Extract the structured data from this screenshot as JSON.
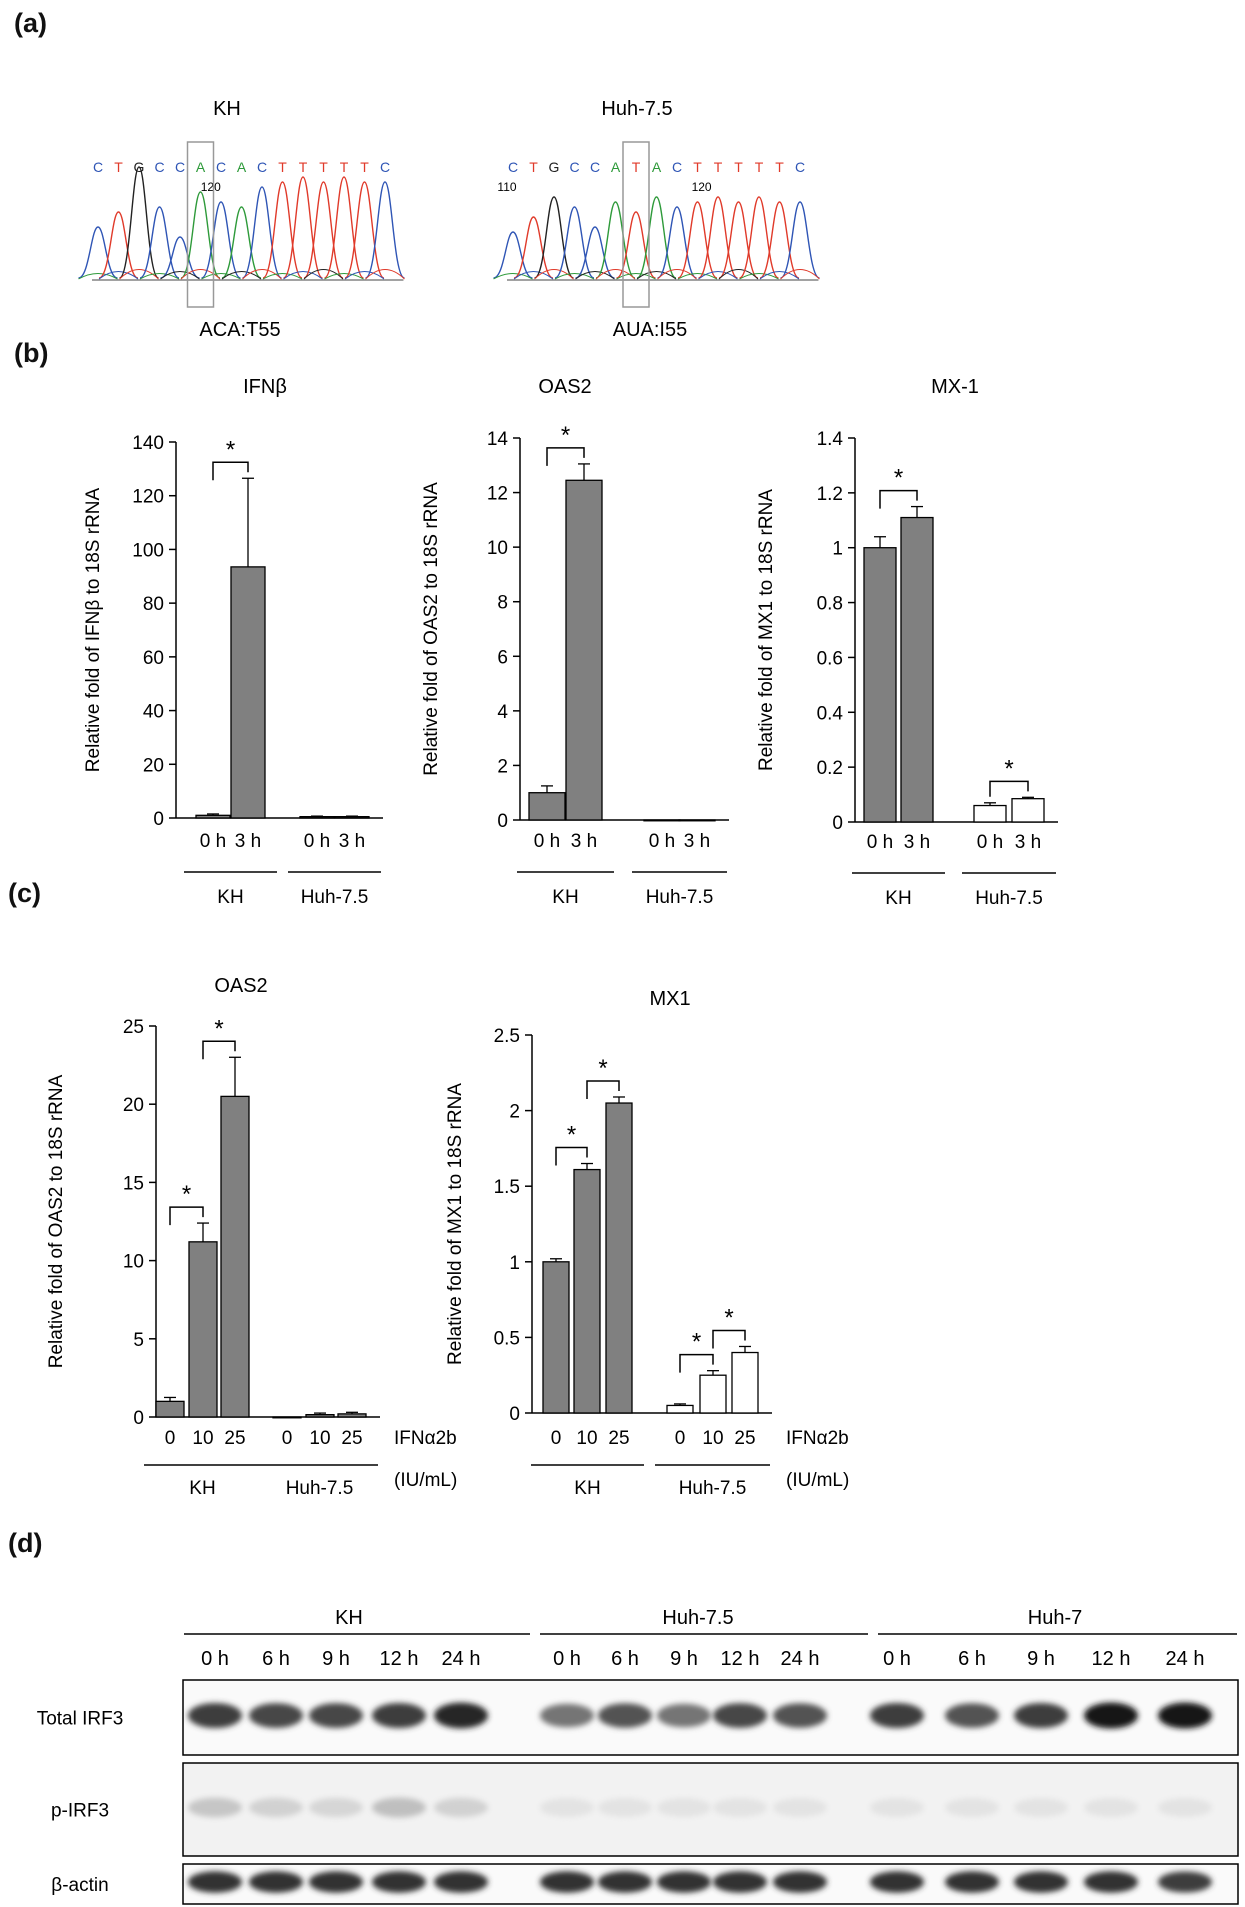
{
  "panel_labels": {
    "a": "(a)",
    "b": "(b)",
    "c": "(c)",
    "d": "(d)"
  },
  "panel_a": {
    "kh": {
      "title": "KH",
      "sequence": [
        "C",
        "T",
        "G",
        "C",
        "C",
        "A",
        "C",
        "A",
        "C",
        "T",
        "T",
        "T",
        "T",
        "T",
        "C"
      ],
      "position_label": "120",
      "codon_label": "ACA:T55"
    },
    "huh": {
      "title": "Huh-7.5",
      "sequence": [
        "C",
        "T",
        "G",
        "C",
        "C",
        "A",
        "T",
        "A",
        "C",
        "T",
        "T",
        "T",
        "T",
        "T",
        "C"
      ],
      "position_label_left": "110",
      "position_label": "120",
      "codon_label": "AUA:I55"
    },
    "base_colors": {
      "A": "#2e9a3a",
      "C": "#2f55b5",
      "G": "#222222",
      "T": "#e03a2a"
    }
  },
  "chart_data": [
    {
      "id": "b1",
      "type": "bar",
      "title": "IFNβ",
      "ylabel": "Relative fold of IFNβ to 18S rRNA",
      "ylim": [
        0,
        140
      ],
      "yticks": [
        0,
        20,
        40,
        60,
        80,
        100,
        120,
        140
      ],
      "groups": [
        {
          "name": "KH",
          "categories": [
            "0 h",
            "3 h"
          ]
        },
        {
          "name": "Huh-7.5",
          "categories": [
            "0 h",
            "3 h"
          ]
        }
      ],
      "series": [
        {
          "name": "KH",
          "values": [
            1,
            93.5
          ],
          "errors": [
            0.5,
            33
          ],
          "color": "#808080"
        },
        {
          "name": "Huh-7.5",
          "values": [
            0.5,
            0.5
          ],
          "errors": [
            0.2,
            0.2
          ],
          "color": "#808080"
        }
      ],
      "significance": [
        {
          "group": 0,
          "from": 0,
          "to": 1,
          "label": "*"
        }
      ]
    },
    {
      "id": "b2",
      "type": "bar",
      "title": "OAS2",
      "ylabel": "Relative fold of OAS2 to 18S rRNA",
      "ylim": [
        0,
        14
      ],
      "yticks": [
        0,
        2,
        4,
        6,
        8,
        10,
        12,
        14
      ],
      "groups": [
        {
          "name": "KH",
          "categories": [
            "0 h",
            "3 h"
          ]
        },
        {
          "name": "Huh-7.5",
          "categories": [
            "0 h",
            "3 h"
          ]
        }
      ],
      "series": [
        {
          "name": "KH",
          "values": [
            1,
            12.45
          ],
          "errors": [
            0.25,
            0.6
          ],
          "color": "#808080"
        },
        {
          "name": "Huh-7.5",
          "values": [
            0,
            0
          ],
          "errors": [
            0,
            0
          ],
          "color": "#808080"
        }
      ],
      "significance": [
        {
          "group": 0,
          "from": 0,
          "to": 1,
          "label": "*"
        }
      ]
    },
    {
      "id": "b3",
      "type": "bar",
      "title": "MX-1",
      "ylabel": "Relative fold of MX1 to 18S rRNA",
      "ylim": [
        0,
        1.4
      ],
      "yticks": [
        0,
        0.2,
        0.4,
        0.6,
        0.8,
        1,
        1.2,
        1.4
      ],
      "groups": [
        {
          "name": "KH",
          "categories": [
            "0 h",
            "3 h"
          ]
        },
        {
          "name": "Huh-7.5",
          "categories": [
            "0 h",
            "3 h"
          ]
        }
      ],
      "series": [
        {
          "name": "KH",
          "values": [
            1.0,
            1.11
          ],
          "errors": [
            0.04,
            0.04
          ],
          "color": "#808080"
        },
        {
          "name": "Huh-7.5",
          "values": [
            0.06,
            0.085
          ],
          "errors": [
            0.01,
            0.005
          ],
          "color": "#ffffff"
        }
      ],
      "significance": [
        {
          "group": 0,
          "from": 0,
          "to": 1,
          "label": "*"
        },
        {
          "group": 1,
          "from": 0,
          "to": 1,
          "label": "*"
        }
      ]
    },
    {
      "id": "c1",
      "type": "bar",
      "title": "OAS2",
      "ylabel": "Relative fold of OAS2 to 18S rRNA",
      "ylim": [
        0,
        25
      ],
      "yticks": [
        0,
        5,
        10,
        15,
        20,
        25
      ],
      "groups": [
        {
          "name": "KH",
          "categories": [
            "0",
            "10",
            "25"
          ]
        },
        {
          "name": "Huh-7.5",
          "categories": [
            "0",
            "10",
            "25"
          ]
        }
      ],
      "series": [
        {
          "name": "KH",
          "values": [
            1,
            11.2,
            20.5
          ],
          "errors": [
            0.25,
            1.2,
            2.5
          ],
          "color": "#808080"
        },
        {
          "name": "Huh-7.5",
          "values": [
            0,
            0.15,
            0.2
          ],
          "errors": [
            0,
            0.1,
            0.1
          ],
          "color": "#808080"
        }
      ],
      "significance": [
        {
          "group": 0,
          "from": 0,
          "to": 1,
          "label": "*"
        },
        {
          "group": 0,
          "from": 1,
          "to": 2,
          "label": "*"
        }
      ],
      "dose_label": [
        "IFNα2b",
        "(IU/mL)"
      ]
    },
    {
      "id": "c2",
      "type": "bar",
      "title": "MX1",
      "ylabel": "Relative fold of MX1 to 18S rRNA",
      "ylim": [
        0,
        2.5
      ],
      "yticks": [
        0,
        0.5,
        1,
        1.5,
        2,
        2.5
      ],
      "groups": [
        {
          "name": "KH",
          "categories": [
            "0",
            "10",
            "25"
          ]
        },
        {
          "name": "Huh-7.5",
          "categories": [
            "0",
            "10",
            "25"
          ]
        }
      ],
      "series": [
        {
          "name": "KH",
          "values": [
            1.0,
            1.61,
            2.05
          ],
          "errors": [
            0.02,
            0.04,
            0.04
          ],
          "color": "#808080"
        },
        {
          "name": "Huh-7.5",
          "values": [
            0.05,
            0.25,
            0.4
          ],
          "errors": [
            0.01,
            0.03,
            0.04
          ],
          "color": "#ffffff"
        }
      ],
      "significance": [
        {
          "group": 0,
          "from": 0,
          "to": 1,
          "label": "*"
        },
        {
          "group": 0,
          "from": 1,
          "to": 2,
          "label": "*"
        },
        {
          "group": 1,
          "from": 0,
          "to": 1,
          "label": "*"
        },
        {
          "group": 1,
          "from": 1,
          "to": 2,
          "label": "*"
        }
      ],
      "dose_label": [
        "IFNα2b",
        "(IU/mL)"
      ]
    }
  ],
  "panel_d": {
    "groups": [
      "KH",
      "Huh-7.5",
      "Huh-7"
    ],
    "timepoints": [
      "0 h",
      "6 h",
      "9 h",
      "12 h",
      "24 h"
    ],
    "rows": [
      {
        "label": "Total IRF3",
        "intensity": [
          0.85,
          0.8,
          0.8,
          0.85,
          0.95,
          0.6,
          0.75,
          0.6,
          0.8,
          0.75,
          0.85,
          0.75,
          0.85,
          1.0,
          1.0
        ]
      },
      {
        "label": "p-IRF3",
        "intensity": [
          0.25,
          0.2,
          0.18,
          0.28,
          0.2,
          0.12,
          0.12,
          0.12,
          0.12,
          0.12,
          0.12,
          0.12,
          0.12,
          0.12,
          0.12
        ]
      },
      {
        "label": "β-actin",
        "intensity": [
          0.9,
          0.9,
          0.9,
          0.9,
          0.9,
          0.9,
          0.9,
          0.9,
          0.9,
          0.9,
          0.9,
          0.9,
          0.9,
          0.9,
          0.85
        ]
      }
    ]
  }
}
